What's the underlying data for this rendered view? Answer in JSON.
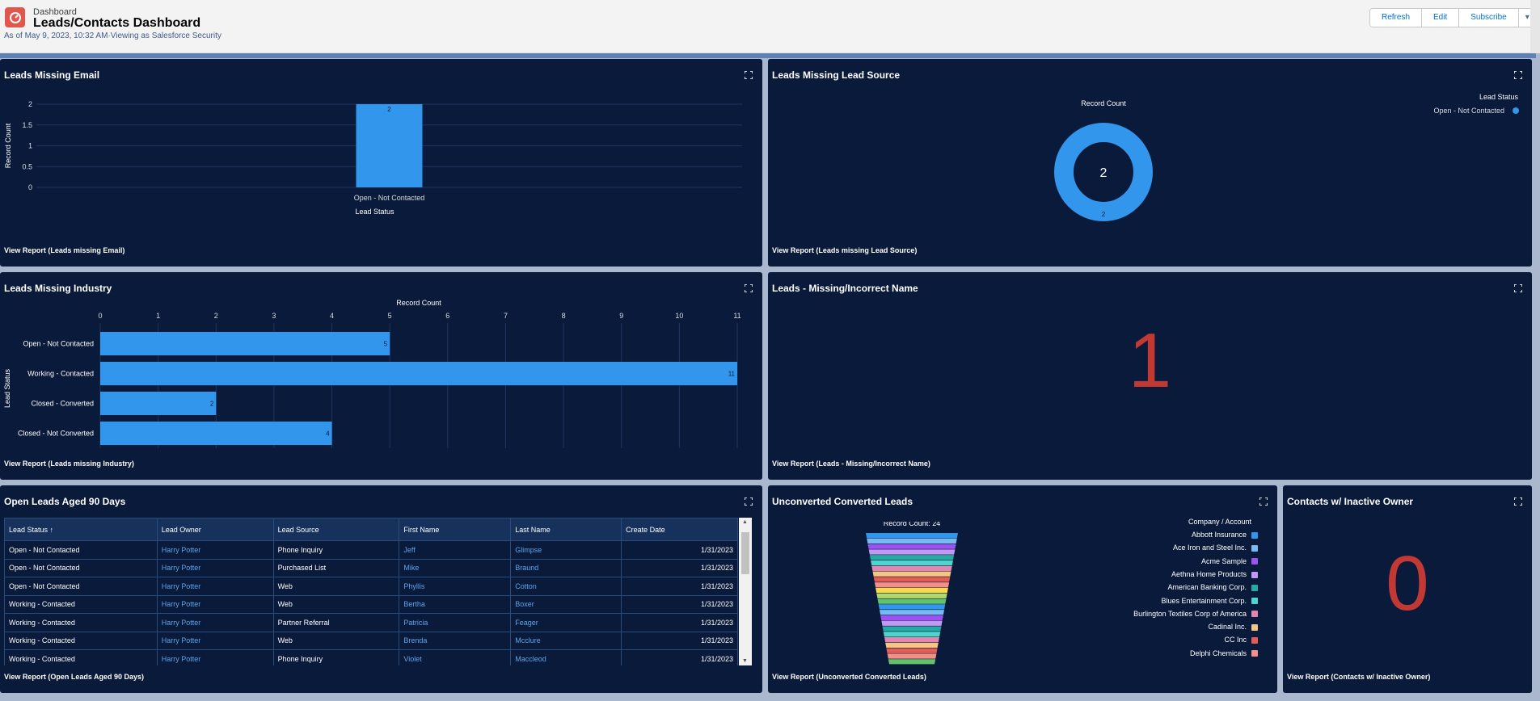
{
  "header": {
    "eyebrow": "Dashboard",
    "title": "Leads/Contacts Dashboard",
    "subtitle": "As of May 9, 2023, 10:32 AM·Viewing as Salesforce Security",
    "buttons": {
      "refresh": "Refresh",
      "edit": "Edit",
      "subscribe": "Subscribe",
      "menu": "▾"
    }
  },
  "colors": {
    "panel_bg": "#0a1a3a",
    "bar": "#3296ed",
    "metric": "#c23934"
  },
  "panels": {
    "missing_email": {
      "title": "Leads Missing Email",
      "view_report": "View Report (Leads missing Email)",
      "chart_data": {
        "type": "bar",
        "categories": [
          "Open - Not Contacted"
        ],
        "values": [
          2
        ],
        "xlabel": "Lead Status",
        "ylabel": "Record Count",
        "yticks": [
          "2",
          "1.5",
          "1",
          "0.5",
          "0"
        ],
        "ylim": [
          0,
          2
        ]
      }
    },
    "missing_source": {
      "title": "Leads Missing Lead Source",
      "view_report": "View Report (Leads missing Lead Source)",
      "chart_data": {
        "type": "pie",
        "title": "Record Count",
        "center_total": "2",
        "slices": [
          {
            "label": "Open - Not Contacted",
            "value": 2,
            "color": "#3296ed"
          }
        ],
        "legend_title": "Lead Status"
      }
    },
    "missing_industry": {
      "title": "Leads Missing Industry",
      "view_report": "View Report (Leads missing Industry)",
      "chart_data": {
        "type": "bar",
        "orientation": "horizontal",
        "title": "Record Count",
        "ylabel": "Lead Status",
        "categories": [
          "Open - Not Contacted",
          "Working - Contacted",
          "Closed - Converted",
          "Closed - Not Converted"
        ],
        "values": [
          5,
          11,
          2,
          4
        ],
        "xticks": [
          "0",
          "1",
          "2",
          "3",
          "4",
          "5",
          "6",
          "7",
          "8",
          "9",
          "10",
          "11"
        ],
        "xlim": [
          0,
          11
        ]
      }
    },
    "incorrect_name": {
      "title": "Leads - Missing/Incorrect Name",
      "metric": "1",
      "view_report": "View Report (Leads - Missing/Incorrect Name)"
    },
    "aged_leads": {
      "title": "Open Leads Aged 90 Days",
      "view_report": "View Report (Open Leads Aged 90 Days)",
      "columns": [
        "Lead Status ↑",
        "Lead Owner",
        "Lead Source",
        "First Name",
        "Last Name",
        "Create Date"
      ],
      "rows": [
        [
          "Open - Not Contacted",
          "Harry Potter",
          "Phone Inquiry",
          "Jeff",
          "Glimpse",
          "1/31/2023"
        ],
        [
          "Open - Not Contacted",
          "Harry Potter",
          "Purchased List",
          "Mike",
          "Braund",
          "1/31/2023"
        ],
        [
          "Open - Not Contacted",
          "Harry Potter",
          "Web",
          "Phyllis",
          "Cotton",
          "1/31/2023"
        ],
        [
          "Working - Contacted",
          "Harry Potter",
          "Web",
          "Bertha",
          "Boxer",
          "1/31/2023"
        ],
        [
          "Working - Contacted",
          "Harry Potter",
          "Partner Referral",
          "Patricia",
          "Feager",
          "1/31/2023"
        ],
        [
          "Working - Contacted",
          "Harry Potter",
          "Web",
          "Brenda",
          "Mcclure",
          "1/31/2023"
        ],
        [
          "Working - Contacted",
          "Harry Potter",
          "Phone Inquiry",
          "Violet",
          "Maccleod",
          "1/31/2023"
        ]
      ]
    },
    "unconverted": {
      "title": "Unconverted Converted Leads",
      "view_report": "View Report (Unconverted Converted Leads)",
      "chart_data": {
        "type": "funnel",
        "title": "Record Count: 24",
        "total": 24,
        "legend_title": "Company / Account",
        "legend": [
          {
            "label": "Abbott Insurance",
            "color": "#3296ed"
          },
          {
            "label": "Ace Iron and Steel Inc.",
            "color": "#77b9f2"
          },
          {
            "label": "Acme Sample",
            "color": "#9d53f2"
          },
          {
            "label": "Aethna Home Products",
            "color": "#c398f5"
          },
          {
            "label": "American Banking Corp.",
            "color": "#26aba4"
          },
          {
            "label": "Blues Entertainment Corp.",
            "color": "#4ed4cd"
          },
          {
            "label": "Burlington Textiles Corp of America",
            "color": "#e287b2"
          },
          {
            "label": "Cadinal Inc.",
            "color": "#f4c583"
          },
          {
            "label": "CC Inc",
            "color": "#e15d55"
          },
          {
            "label": "Delphi Chemicals",
            "color": "#f28f88"
          }
        ]
      }
    },
    "inactive_owner": {
      "title": "Contacts w/ Inactive Owner",
      "metric": "0",
      "view_report": "View Report (Contacts w/ Inactive Owner)"
    }
  }
}
